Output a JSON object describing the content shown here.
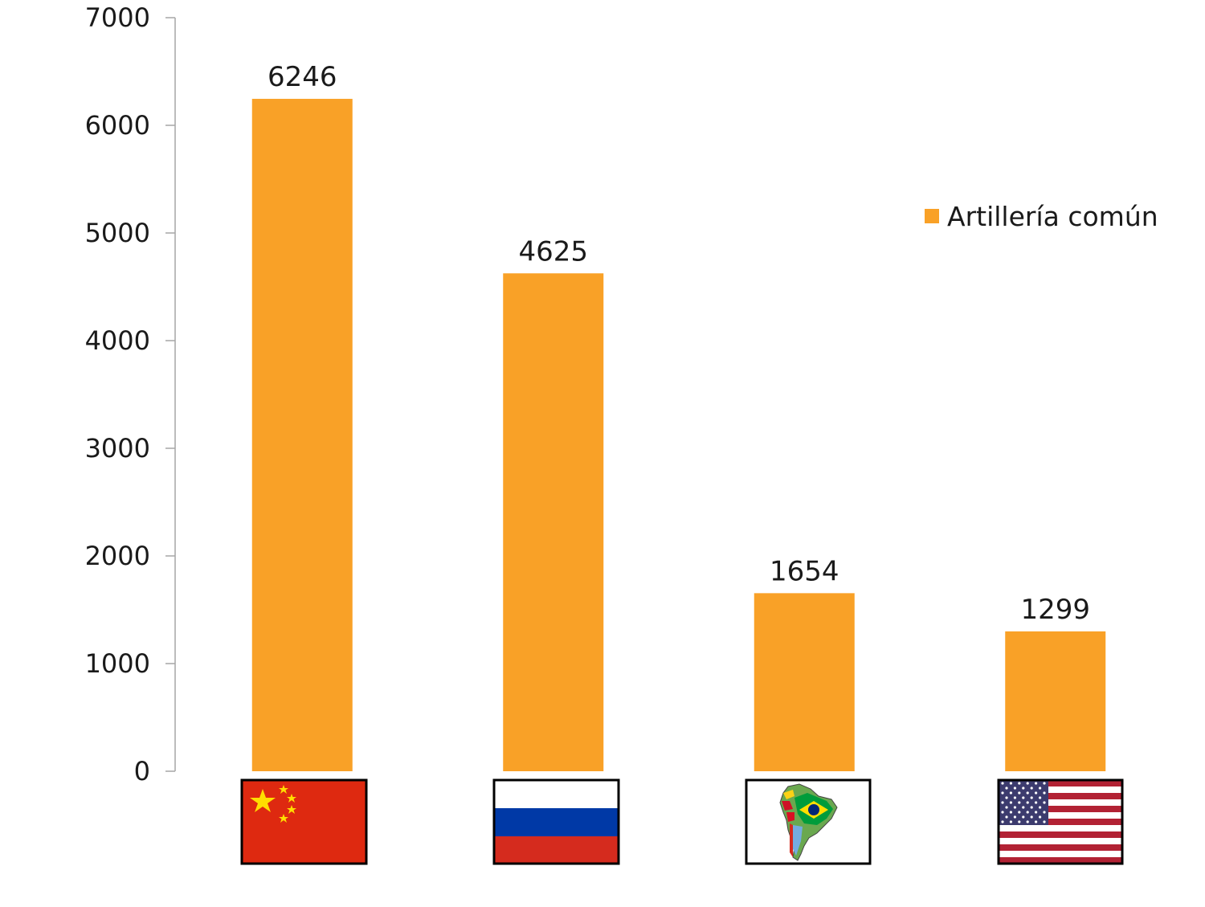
{
  "chart_data": {
    "type": "bar",
    "categories": [
      "China",
      "Russia",
      "South America",
      "USA"
    ],
    "category_icons": [
      "china-flag-icon",
      "russia-flag-icon",
      "south-america-map-icon",
      "usa-flag-icon"
    ],
    "series": [
      {
        "name": "Artillería común",
        "values": [
          6246,
          4625,
          1654,
          1299
        ],
        "color": "#f9a127"
      }
    ],
    "ylim": [
      0,
      7000
    ],
    "yticks": [
      "0",
      "1000",
      "2000",
      "3000",
      "4000",
      "5000",
      "6000",
      "7000"
    ],
    "xlabel": "",
    "ylabel": "",
    "title": "",
    "grid": false,
    "legend": {
      "placement": "right"
    },
    "data_labels": true
  }
}
